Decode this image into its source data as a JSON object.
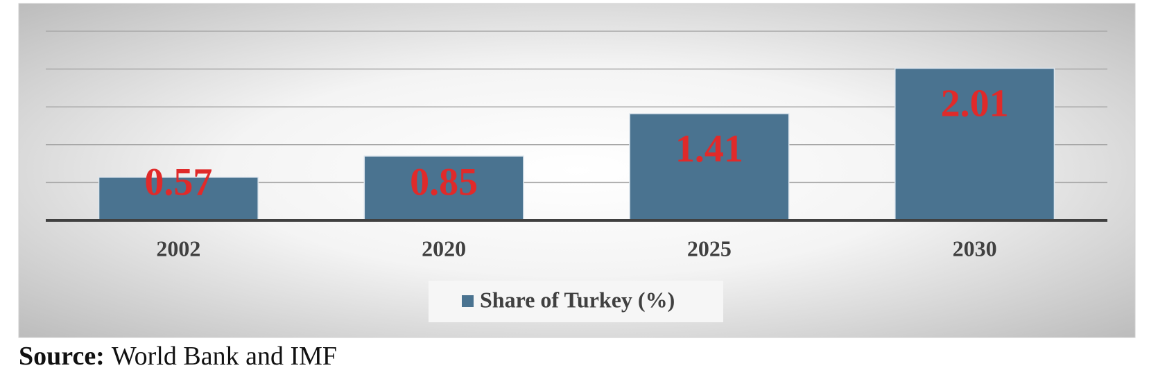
{
  "chart_data": {
    "type": "bar",
    "categories": [
      "2002",
      "2020",
      "2025",
      "2030"
    ],
    "series": [
      {
        "name": "Share of Turkey (%)",
        "color": "#4a7390",
        "values": [
          0.57,
          0.85,
          1.41,
          2.01
        ]
      }
    ],
    "value_label_color": "#e02a2a",
    "ylim": [
      0,
      2.5
    ],
    "yticks": [
      0,
      0.5,
      1,
      1.5,
      2,
      2.5
    ],
    "grid": true,
    "legend": "bottom"
  },
  "source": {
    "label": "Source:",
    "text": "World Bank and IMF"
  }
}
